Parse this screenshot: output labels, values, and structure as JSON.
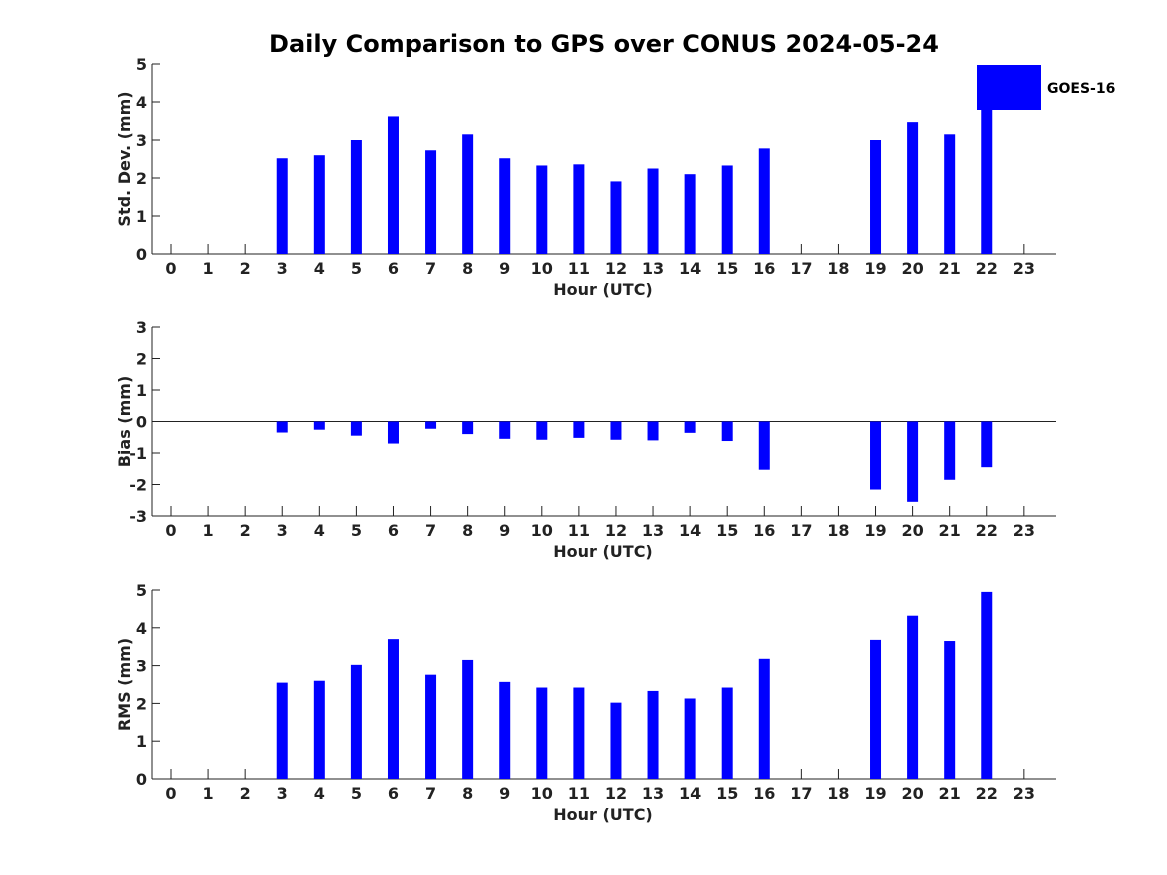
{
  "chart_data": [
    {
      "type": "bar",
      "title": "Daily Comparison to GPS over CONUS 2024-05-24",
      "xlabel": "Hour (UTC)",
      "ylabel": "Std. Dev. (mm)",
      "categories": [
        "0",
        "1",
        "2",
        "3",
        "4",
        "5",
        "6",
        "7",
        "8",
        "9",
        "10",
        "11",
        "12",
        "13",
        "14",
        "15",
        "16",
        "17",
        "18",
        "19",
        "20",
        "21",
        "22",
        "23"
      ],
      "yticks": [
        "0",
        "1",
        "2",
        "3",
        "4",
        "5"
      ],
      "ylim": [
        0,
        5
      ],
      "series": [
        {
          "name": "GOES-16",
          "color": "#0000ff",
          "values": [
            null,
            null,
            null,
            2.52,
            2.6,
            3.0,
            3.62,
            2.73,
            3.15,
            2.52,
            2.33,
            2.36,
            1.91,
            2.25,
            2.1,
            2.33,
            2.78,
            null,
            null,
            3.0,
            3.47,
            3.15,
            3.85,
            null
          ]
        }
      ],
      "legend": {
        "position": "top-right",
        "entries": [
          "GOES-16"
        ]
      }
    },
    {
      "type": "bar",
      "title": "",
      "xlabel": "Hour (UTC)",
      "ylabel": "Bias (mm)",
      "categories": [
        "0",
        "1",
        "2",
        "3",
        "4",
        "5",
        "6",
        "7",
        "8",
        "9",
        "10",
        "11",
        "12",
        "13",
        "14",
        "15",
        "16",
        "17",
        "18",
        "19",
        "20",
        "21",
        "22",
        "23"
      ],
      "yticks": [
        "-3",
        "-2",
        "-1",
        "0",
        "1",
        "2",
        "3"
      ],
      "ylim": [
        -3,
        3
      ],
      "series": [
        {
          "name": "GOES-16",
          "color": "#0000ff",
          "values": [
            null,
            null,
            null,
            -0.35,
            -0.26,
            -0.45,
            -0.7,
            -0.23,
            -0.4,
            -0.55,
            -0.58,
            -0.52,
            -0.58,
            -0.6,
            -0.36,
            -0.62,
            -1.53,
            null,
            null,
            -2.16,
            -2.55,
            -1.85,
            -1.45,
            null
          ]
        }
      ]
    },
    {
      "type": "bar",
      "title": "",
      "xlabel": "Hour (UTC)",
      "ylabel": "RMS (mm)",
      "categories": [
        "0",
        "1",
        "2",
        "3",
        "4",
        "5",
        "6",
        "7",
        "8",
        "9",
        "10",
        "11",
        "12",
        "13",
        "14",
        "15",
        "16",
        "17",
        "18",
        "19",
        "20",
        "21",
        "22",
        "23"
      ],
      "yticks": [
        "0",
        "1",
        "2",
        "3",
        "4",
        "5"
      ],
      "ylim": [
        0,
        5
      ],
      "series": [
        {
          "name": "GOES-16",
          "color": "#0000ff",
          "values": [
            null,
            null,
            null,
            2.55,
            2.6,
            3.02,
            3.7,
            2.76,
            3.15,
            2.57,
            2.42,
            2.42,
            2.02,
            2.33,
            2.13,
            2.42,
            3.18,
            null,
            null,
            3.68,
            4.32,
            3.65,
            4.95,
            null
          ]
        }
      ]
    }
  ]
}
